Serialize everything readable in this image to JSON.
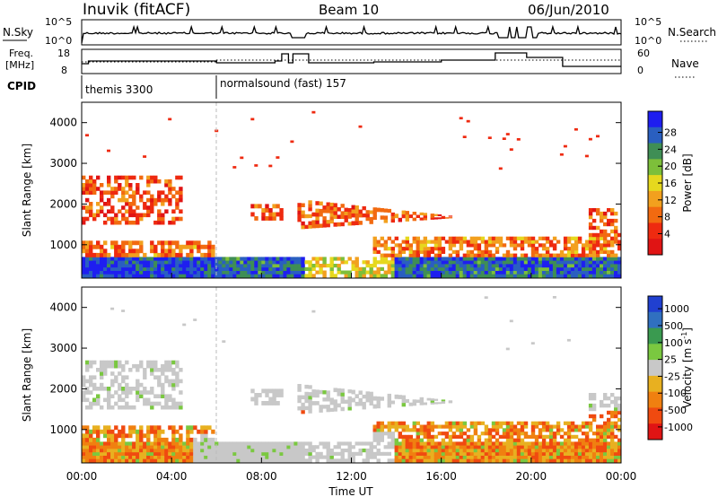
{
  "header": {
    "station": "Inuvik (fitACF)",
    "beam": "Beam 10",
    "date": "06/Jun/2010"
  },
  "panel_labels": {
    "nsky": "N.Sky",
    "freq_line1": "Freq.",
    "freq_line2": "[MHz]",
    "cpid": "CPID",
    "nsearch": "N.Search",
    "nave": "Nave"
  },
  "nsky_ticks": [
    "10^5",
    "10^0"
  ],
  "nsearch_ticks": [
    "10^5",
    "10^0"
  ],
  "freq_ticks": [
    "18",
    "8"
  ],
  "nave_ticks": [
    "60",
    "0"
  ],
  "cpid_segments": [
    {
      "label": "themis 3300",
      "start_hour": 0
    },
    {
      "label": "normalsound (fast) 157",
      "start_hour": 6
    }
  ],
  "colors": {
    "power_scale": [
      "#1e1ef0",
      "#2a5fc0",
      "#3f8e55",
      "#7dbf3a",
      "#e6d81e",
      "#f2a01e",
      "#f26a10",
      "#ee2a10",
      "#e01414"
    ],
    "velocity_scale": [
      "#2040d0",
      "#3070c0",
      "#3a9a50",
      "#7ac840",
      "#c8c8c8",
      "#e8b020",
      "#f08010",
      "#f04a10",
      "#e01414"
    ]
  },
  "chart_data": [
    {
      "type": "heatmap",
      "name": "power",
      "ylabel": "Slant Range [km]",
      "xlabel": "Time UT",
      "ylim": [
        180,
        4500
      ],
      "xlim_hours": [
        0,
        24
      ],
      "x_ticks": [
        "00:00",
        "04:00",
        "08:00",
        "12:00",
        "16:00",
        "20:00",
        "00:00"
      ],
      "y_ticks": [
        1000,
        2000,
        3000,
        4000
      ],
      "colorbar": {
        "label": "Power [dB]",
        "ticks": [
          "28",
          "24",
          "20",
          "16",
          "12",
          "8",
          "4"
        ],
        "range": [
          0,
          30
        ]
      }
    },
    {
      "type": "heatmap",
      "name": "velocity",
      "ylabel": "Slant Range [km]",
      "xlabel": "Time UT",
      "ylim": [
        180,
        4500
      ],
      "xlim_hours": [
        0,
        24
      ],
      "x_ticks": [
        "00:00",
        "04:00",
        "08:00",
        "12:00",
        "16:00",
        "20:00",
        "00:00"
      ],
      "y_ticks": [
        1000,
        2000,
        3000,
        4000
      ],
      "colorbar": {
        "label": "Velocity [m s",
        "label_sup": "-1",
        "label_end": "]",
        "ticks": [
          "1000",
          "500",
          "100",
          "25",
          "-25",
          "-100",
          "-500",
          "-1000"
        ]
      }
    }
  ]
}
